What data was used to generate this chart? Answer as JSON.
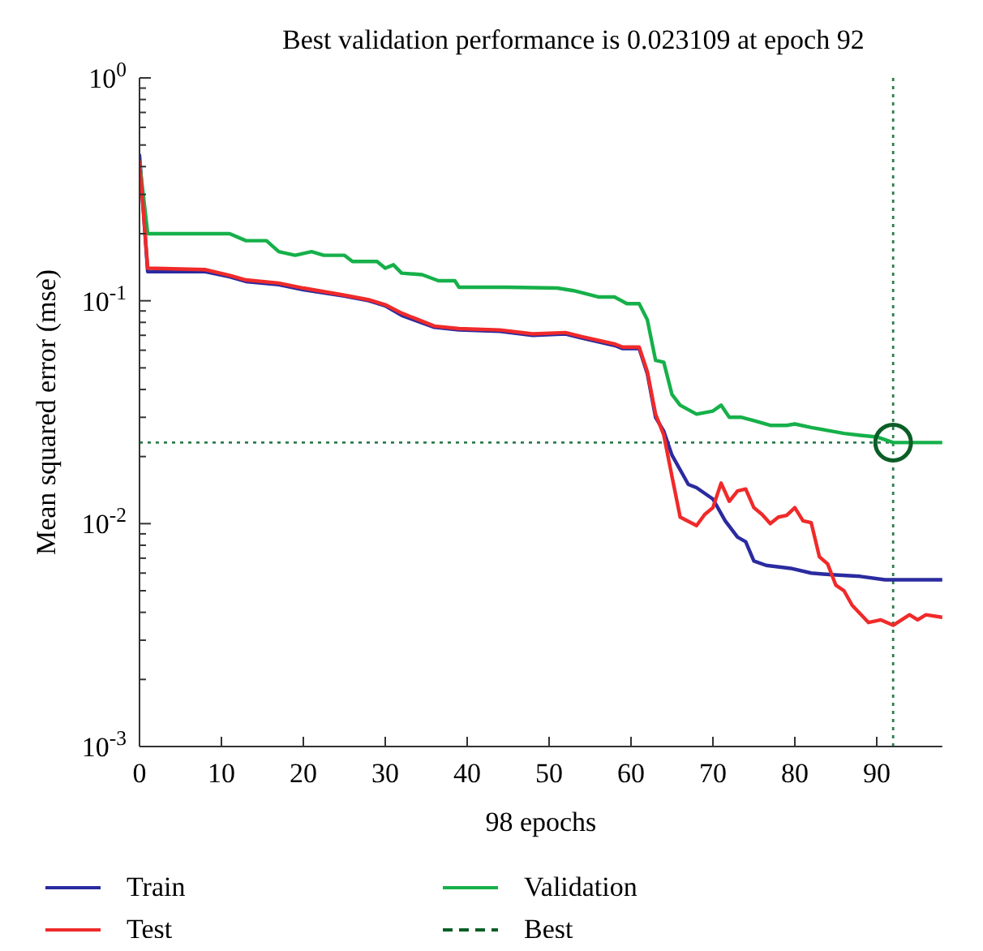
{
  "chart_data": {
    "type": "line",
    "title": "Best validation performance is 0.023109 at epoch 92",
    "xlabel": "98 epochs",
    "ylabel": "Mean squared error (mse)",
    "xlim": [
      0,
      98
    ],
    "xticks": [
      0,
      10,
      20,
      30,
      40,
      50,
      60,
      70,
      80,
      90
    ],
    "ylim": [
      0.001,
      1
    ],
    "log": true,
    "grid": false,
    "legend": "bottom",
    "line_style": "solid",
    "yticks": [
      {
        "value": 1,
        "label": "10$^{0}$"
      },
      {
        "value": 0.1,
        "label": "10$^{-1}$"
      },
      {
        "value": 0.01,
        "label": "10$^{-2}$"
      },
      {
        "value": 0.001,
        "label": "10$^{-3}$"
      },
      {
        "value": 0.002,
        "label": null
      },
      {
        "value": 0.003,
        "label": null
      },
      {
        "value": 0.004,
        "label": null
      },
      {
        "value": 0.005,
        "label": null
      },
      {
        "value": 0.006,
        "label": null
      },
      {
        "value": 0.007,
        "label": null
      },
      {
        "value": 0.008,
        "label": null
      },
      {
        "value": 0.009,
        "label": null
      },
      {
        "value": 0.02,
        "label": null
      },
      {
        "value": 0.03,
        "label": null
      },
      {
        "value": 0.04,
        "label": null
      },
      {
        "value": 0.05,
        "label": null
      },
      {
        "value": 0.06,
        "label": null
      },
      {
        "value": 0.07,
        "label": null
      },
      {
        "value": 0.08,
        "label": null
      },
      {
        "value": 0.09,
        "label": null
      },
      {
        "value": 0.2,
        "label": null
      },
      {
        "value": 0.3,
        "label": null
      },
      {
        "value": 0.4,
        "label": null
      },
      {
        "value": 0.5,
        "label": null
      },
      {
        "value": 0.6,
        "label": null
      },
      {
        "value": 0.7,
        "label": null
      },
      {
        "value": 0.8,
        "label": null
      },
      {
        "value": 0.9,
        "label": null
      }
    ],
    "ref_lines": [
      {
        "axis": "x",
        "value": 92,
        "label": null,
        "color": "#2e7d4f",
        "line_style": "dotted"
      },
      {
        "axis": "y",
        "value": 0.023109,
        "label": null,
        "color": "#2e7d4f",
        "line_style": "dotted"
      }
    ],
    "series": [
      {
        "name": "Train",
        "color": "#2b2ba0",
        "x": [
          0,
          1,
          8,
          11,
          13,
          17,
          20,
          25,
          28,
          30,
          32,
          36,
          39,
          44,
          48,
          52,
          54,
          58,
          59,
          61,
          62,
          63,
          64,
          65,
          67,
          68,
          70,
          71.5,
          73,
          74,
          75,
          76.5,
          79.5,
          82,
          84.5,
          88,
          91,
          98
        ],
        "values": [
          0.45,
          0.135,
          0.135,
          0.128,
          0.122,
          0.118,
          0.112,
          0.105,
          0.1,
          0.095,
          0.086,
          0.076,
          0.074,
          0.073,
          0.07,
          0.071,
          0.068,
          0.063,
          0.061,
          0.061,
          0.047,
          0.03,
          0.026,
          0.0203,
          0.015,
          0.0145,
          0.0129,
          0.0103,
          0.0087,
          0.0083,
          0.0068,
          0.0065,
          0.0063,
          0.006,
          0.0059,
          0.0058,
          0.0056,
          0.0056
        ]
      },
      {
        "name": "Validation",
        "color": "#16b04a",
        "x": [
          0,
          1,
          8,
          11,
          13,
          15.5,
          17,
          19,
          21,
          22.5,
          25,
          26,
          29,
          30,
          31,
          32,
          34.5,
          36.5,
          38.5,
          39,
          43,
          45,
          51,
          53,
          56,
          58,
          59.5,
          61,
          62,
          63,
          64,
          65,
          66,
          68,
          70,
          71,
          72,
          73.5,
          75,
          77,
          79,
          80,
          82,
          84.5,
          86,
          88,
          90,
          92,
          98
        ],
        "values": [
          0.42,
          0.2,
          0.2,
          0.2,
          0.186,
          0.186,
          0.166,
          0.16,
          0.166,
          0.16,
          0.16,
          0.15,
          0.15,
          0.14,
          0.145,
          0.133,
          0.131,
          0.123,
          0.123,
          0.115,
          0.115,
          0.115,
          0.114,
          0.111,
          0.104,
          0.104,
          0.097,
          0.097,
          0.082,
          0.054,
          0.053,
          0.038,
          0.034,
          0.031,
          0.032,
          0.034,
          0.03,
          0.03,
          0.029,
          0.0276,
          0.0276,
          0.028,
          0.027,
          0.026,
          0.0254,
          0.0249,
          0.0245,
          0.023109,
          0.023109
        ]
      },
      {
        "name": "Test",
        "color": "#f02a2a",
        "x": [
          0,
          1,
          8,
          11,
          13,
          17,
          20,
          25,
          28,
          30,
          32,
          36,
          39,
          44,
          48,
          52,
          54,
          58,
          59,
          61,
          62,
          63,
          64,
          65,
          66,
          68,
          69,
          70,
          71,
          72,
          73,
          74,
          75,
          76,
          77,
          78,
          79,
          80,
          81,
          82,
          83,
          84,
          85,
          86,
          87,
          89,
          90.5,
          92,
          94,
          95,
          96,
          98
        ],
        "values": [
          0.42,
          0.14,
          0.138,
          0.13,
          0.124,
          0.12,
          0.114,
          0.106,
          0.101,
          0.096,
          0.088,
          0.077,
          0.075,
          0.074,
          0.071,
          0.072,
          0.069,
          0.064,
          0.062,
          0.062,
          0.048,
          0.031,
          0.025,
          0.0163,
          0.0107,
          0.0098,
          0.011,
          0.0118,
          0.0152,
          0.0126,
          0.014,
          0.0143,
          0.0118,
          0.011,
          0.01,
          0.0107,
          0.0109,
          0.0118,
          0.0103,
          0.0101,
          0.0071,
          0.0066,
          0.0053,
          0.005,
          0.0043,
          0.0036,
          0.0037,
          0.0035,
          0.0039,
          0.0037,
          0.0039,
          0.0038
        ]
      },
      {
        "name": "Best",
        "type": "scatter",
        "marker": "circle",
        "line_style": "dashed",
        "color": "#0b5e26",
        "x": [
          92
        ],
        "values": [
          0.023109
        ]
      }
    ]
  }
}
